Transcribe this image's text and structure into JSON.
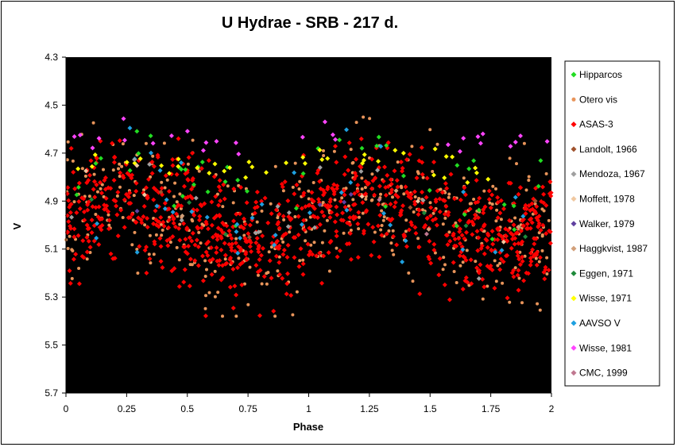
{
  "chart_data": {
    "type": "scatter",
    "title": "U Hydrae - SRB - 217 d.",
    "xlabel": "Phase",
    "ylabel": "V",
    "xlim": [
      0,
      2
    ],
    "ylim": [
      4.3,
      5.7
    ],
    "y_inverted": true,
    "x_ticks": [
      "0",
      "0.25",
      "0.5",
      "0.75",
      "1",
      "1.25",
      "1.5",
      "1.75",
      "2"
    ],
    "y_ticks": [
      "4.3",
      "4.5",
      "4.7",
      "4.9",
      "5.1",
      "5.3",
      "5.5",
      "5.7"
    ],
    "plot_background": "#000000",
    "grid": false,
    "legend_position": "right",
    "period_days": 217,
    "series": [
      {
        "name": "Hipparcos",
        "color": "#22dd22",
        "marker": "diamond",
        "count": 45,
        "center": 4.82,
        "spread": 0.08
      },
      {
        "name": "Otero vis",
        "color": "#e8945a",
        "marker": "circle",
        "count": 420,
        "center": 4.98,
        "spread": 0.15
      },
      {
        "name": "ASAS-3",
        "color": "#ff0000",
        "marker": "diamond",
        "count": 900,
        "center": 4.98,
        "spread": 0.12
      },
      {
        "name": "Landolt, 1966",
        "color": "#a0522d",
        "marker": "diamond",
        "count": 4,
        "center": 4.9,
        "spread": 0.05
      },
      {
        "name": "Mendoza, 1967",
        "color": "#a0a0a0",
        "marker": "diamond",
        "count": 16,
        "center": 4.88,
        "spread": 0.1
      },
      {
        "name": "Moffett, 1978",
        "color": "#f0c8a0",
        "marker": "diamond",
        "count": 6,
        "center": 4.9,
        "spread": 0.05
      },
      {
        "name": "Walker,  1979",
        "color": "#6040a0",
        "marker": "diamond",
        "count": 4,
        "center": 4.95,
        "spread": 0.05
      },
      {
        "name": "Haggkvist, 1987",
        "color": "#d2a07a",
        "marker": "diamond",
        "count": 4,
        "center": 5.0,
        "spread": 0.05
      },
      {
        "name": "Eggen, 1971",
        "color": "#1e8a3a",
        "marker": "diamond",
        "count": 6,
        "center": 4.95,
        "spread": 0.05
      },
      {
        "name": "Wisse, 1971",
        "color": "#ffff00",
        "marker": "diamond",
        "count": 40,
        "center": 4.75,
        "spread": 0.03
      },
      {
        "name": "AAVSO V",
        "color": "#1ea0e0",
        "marker": "diamond",
        "count": 40,
        "center": 4.92,
        "spread": 0.15
      },
      {
        "name": "Wisse, 1981",
        "color": "#ff44ff",
        "marker": "diamond",
        "count": 28,
        "center": 4.64,
        "spread": 0.03
      },
      {
        "name": "CMC,  1999",
        "color": "#c07890",
        "marker": "diamond",
        "count": 2,
        "center": 5.0,
        "spread": 0.05
      }
    ]
  }
}
